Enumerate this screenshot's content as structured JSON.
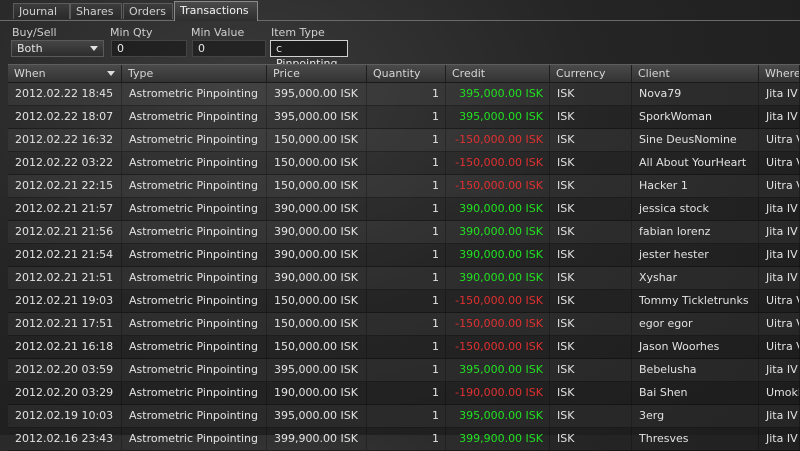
{
  "tabs": [
    "Journal",
    "Shares",
    "Orders",
    "Transactions"
  ],
  "filters": {
    "buysell_label": "Buy/Sell",
    "buysell_value": "Both",
    "minqty_label": "Min Qty",
    "minqty_value": "0",
    "minvalue_label": "Min Value",
    "minvalue_value": "0",
    "itemtype_label": "Item Type",
    "itemtype_value": "c Pinpointing"
  },
  "columns": [
    "When",
    "Type",
    "Price",
    "Quantity",
    "Credit",
    "Currency",
    "Client",
    "Where"
  ],
  "rows": [
    {
      "when": "2012.02.22 18:45",
      "type": "Astrometric Pinpointing",
      "price": "395,000.00 ISK",
      "qty": "1",
      "credit": "395,000.00 ISK",
      "sign": "pos",
      "currency": "ISK",
      "client": "Nova79",
      "where": "Jita IV"
    },
    {
      "when": "2012.02.22 18:07",
      "type": "Astrometric Pinpointing",
      "price": "395,000.00 ISK",
      "qty": "1",
      "credit": "395,000.00 ISK",
      "sign": "pos",
      "currency": "ISK",
      "client": "SporkWoman",
      "where": "Jita IV"
    },
    {
      "when": "2012.02.22 16:32",
      "type": "Astrometric Pinpointing",
      "price": "150,000.00 ISK",
      "qty": "1",
      "credit": "-150,000.00 ISK",
      "sign": "neg",
      "currency": "ISK",
      "client": "Sine DeusNomine",
      "where": "Uitra V"
    },
    {
      "when": "2012.02.22 03:22",
      "type": "Astrometric Pinpointing",
      "price": "150,000.00 ISK",
      "qty": "1",
      "credit": "-150,000.00 ISK",
      "sign": "neg",
      "currency": "ISK",
      "client": "All About YourHeart",
      "where": "Uitra V"
    },
    {
      "when": "2012.02.21 22:15",
      "type": "Astrometric Pinpointing",
      "price": "150,000.00 ISK",
      "qty": "1",
      "credit": "-150,000.00 ISK",
      "sign": "neg",
      "currency": "ISK",
      "client": "Hacker 1",
      "where": "Uitra V"
    },
    {
      "when": "2012.02.21 21:57",
      "type": "Astrometric Pinpointing",
      "price": "390,000.00 ISK",
      "qty": "1",
      "credit": "390,000.00 ISK",
      "sign": "pos",
      "currency": "ISK",
      "client": "jessica stock",
      "where": "Jita IV"
    },
    {
      "when": "2012.02.21 21:56",
      "type": "Astrometric Pinpointing",
      "price": "390,000.00 ISK",
      "qty": "1",
      "credit": "390,000.00 ISK",
      "sign": "pos",
      "currency": "ISK",
      "client": "fabian lorenz",
      "where": "Jita IV"
    },
    {
      "when": "2012.02.21 21:54",
      "type": "Astrometric Pinpointing",
      "price": "390,000.00 ISK",
      "qty": "1",
      "credit": "390,000.00 ISK",
      "sign": "pos",
      "currency": "ISK",
      "client": "jester hester",
      "where": "Jita IV"
    },
    {
      "when": "2012.02.21 21:51",
      "type": "Astrometric Pinpointing",
      "price": "390,000.00 ISK",
      "qty": "1",
      "credit": "390,000.00 ISK",
      "sign": "pos",
      "currency": "ISK",
      "client": "Xyshar",
      "where": "Jita IV"
    },
    {
      "when": "2012.02.21 19:03",
      "type": "Astrometric Pinpointing",
      "price": "150,000.00 ISK",
      "qty": "1",
      "credit": "-150,000.00 ISK",
      "sign": "neg",
      "currency": "ISK",
      "client": "Tommy Tickletrunks",
      "where": "Uitra V"
    },
    {
      "when": "2012.02.21 17:51",
      "type": "Astrometric Pinpointing",
      "price": "150,000.00 ISK",
      "qty": "1",
      "credit": "-150,000.00 ISK",
      "sign": "neg",
      "currency": "ISK",
      "client": "egor egor",
      "where": "Uitra V"
    },
    {
      "when": "2012.02.21 16:18",
      "type": "Astrometric Pinpointing",
      "price": "150,000.00 ISK",
      "qty": "1",
      "credit": "-150,000.00 ISK",
      "sign": "neg",
      "currency": "ISK",
      "client": "Jason Woorhes",
      "where": "Uitra V"
    },
    {
      "when": "2012.02.20 03:59",
      "type": "Astrometric Pinpointing",
      "price": "395,000.00 ISK",
      "qty": "1",
      "credit": "395,000.00 ISK",
      "sign": "pos",
      "currency": "ISK",
      "client": "Bebelusha",
      "where": "Jita IV"
    },
    {
      "when": "2012.02.20 03:29",
      "type": "Astrometric Pinpointing",
      "price": "190,000.00 ISK",
      "qty": "1",
      "credit": "-190,000.00 ISK",
      "sign": "neg",
      "currency": "ISK",
      "client": "Bai Shen",
      "where": "Umokk"
    },
    {
      "when": "2012.02.19 10:03",
      "type": "Astrometric Pinpointing",
      "price": "395,000.00 ISK",
      "qty": "1",
      "credit": "395,000.00 ISK",
      "sign": "pos",
      "currency": "ISK",
      "client": "3erg",
      "where": "Jita IV"
    },
    {
      "when": "2012.02.16 23:43",
      "type": "Astrometric Pinpointing",
      "price": "399,900.00 ISK",
      "qty": "1",
      "credit": "399,900.00 ISK",
      "sign": "pos",
      "currency": "ISK",
      "client": "Thresves",
      "where": "Jita IV"
    }
  ],
  "colors": {
    "positive": "#22e022",
    "negative": "#e03030"
  }
}
